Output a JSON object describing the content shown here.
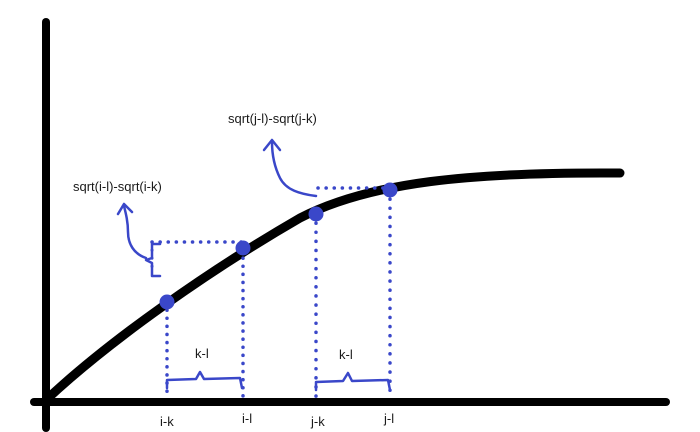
{
  "colors": {
    "background": "#ffffff",
    "axis": "#000000",
    "curve": "#000000",
    "annotation": "#3a47c9"
  },
  "annotations": {
    "left_difference": "sqrt(i-l)-sqrt(i-k)",
    "right_difference": "sqrt(j-l)-sqrt(j-k)",
    "left_gap": "k-l",
    "right_gap": "k-l"
  },
  "axis_ticks": {
    "i_k": "i-k",
    "i_l": "i-l",
    "j_k": "j-k",
    "j_l": "j-l"
  }
}
